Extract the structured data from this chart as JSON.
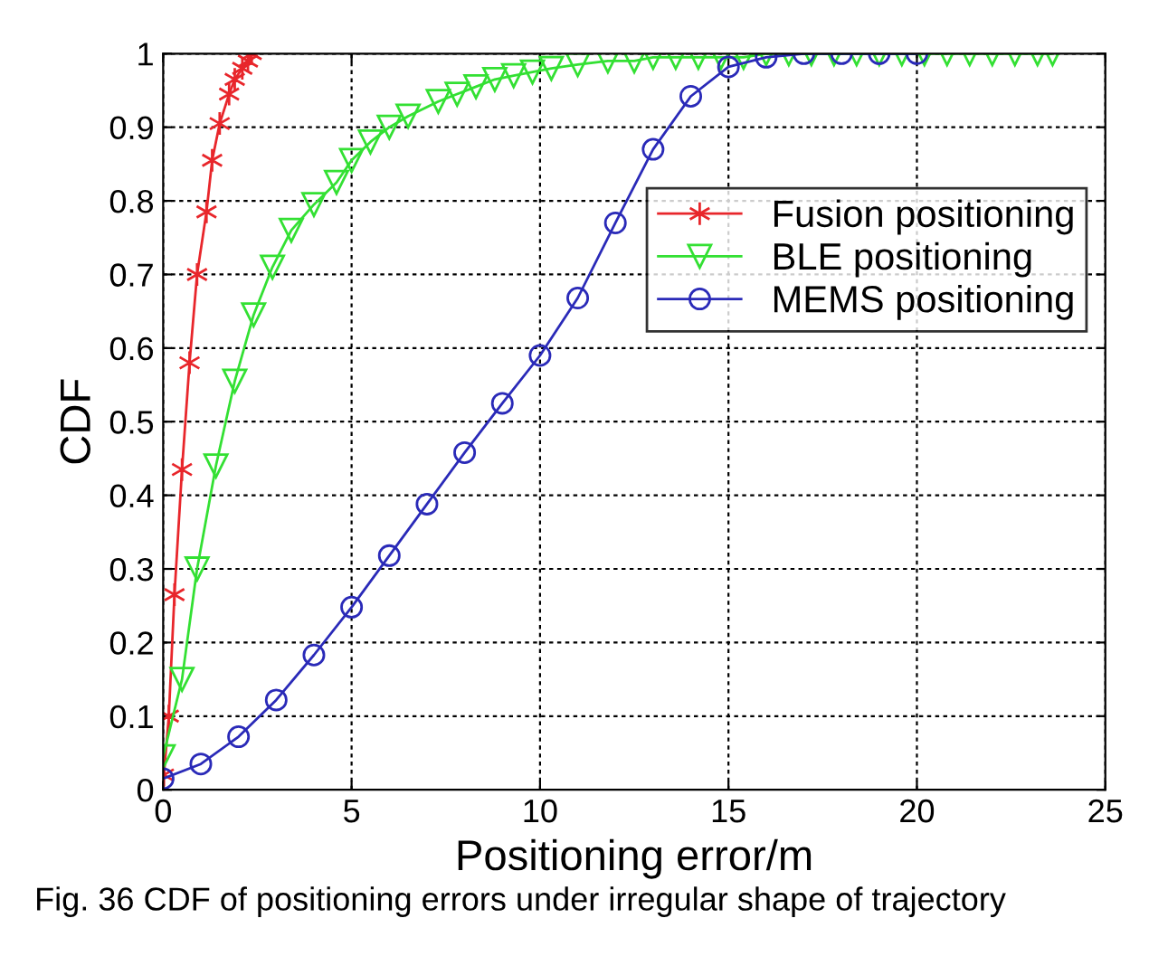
{
  "chart_data": {
    "type": "line",
    "xlabel": "Positioning error/m",
    "ylabel": "CDF",
    "xlim": [
      0,
      25
    ],
    "ylim": [
      0,
      1
    ],
    "xticks": [
      0,
      5,
      10,
      15,
      20,
      25
    ],
    "yticks": [
      0,
      0.1,
      0.2,
      0.3,
      0.4,
      0.5,
      0.6,
      0.7,
      0.8,
      0.9,
      1
    ],
    "grid": true,
    "legend": "right",
    "line_style": "solid",
    "annotations": [
      "Fig. 36 CDF of positioning errors under irregular shape of trajectory"
    ],
    "series": [
      {
        "name": "Fusion positioning",
        "color": "#e8262b",
        "marker": "cross",
        "x": [
          0.02,
          0.15,
          0.3,
          0.5,
          0.7,
          0.9,
          1.15,
          1.3,
          1.5,
          1.75,
          1.9,
          2.1,
          2.25,
          2.35
        ],
        "values": [
          0.02,
          0.1,
          0.265,
          0.435,
          0.58,
          0.7,
          0.785,
          0.855,
          0.905,
          0.945,
          0.965,
          0.98,
          0.99,
          1.0
        ]
      },
      {
        "name": "BLE positioning",
        "color": "#33e033",
        "marker": "triangle",
        "x": [
          0,
          0.5,
          0.9,
          1.4,
          1.9,
          2.4,
          2.9,
          3.4,
          4,
          4.6,
          5,
          5.5,
          6,
          6.5,
          7.3,
          7.8,
          8.3,
          8.8,
          9.3,
          9.8,
          10.3,
          11,
          11.8,
          12.5,
          13,
          13.6,
          14.2,
          14.8,
          15.4,
          16,
          16.6,
          17.2,
          17.8,
          18.4,
          19,
          19.6,
          20.2,
          20.8,
          21.4,
          22,
          22.6,
          23.2,
          23.6
        ],
        "values": [
          0.045,
          0.15,
          0.3,
          0.44,
          0.555,
          0.645,
          0.71,
          0.76,
          0.795,
          0.825,
          0.855,
          0.88,
          0.9,
          0.915,
          0.935,
          0.945,
          0.955,
          0.965,
          0.97,
          0.975,
          0.98,
          0.985,
          0.99,
          0.99,
          0.995,
          0.995,
          0.995,
          0.995,
          0.995,
          1.0,
          1.0,
          1.0,
          1.0,
          1.0,
          1.0,
          1.0,
          1.0,
          1.0,
          1.0,
          1.0,
          1.0,
          1.0,
          1.0
        ]
      },
      {
        "name": "MEMS positioning",
        "color": "#2a2ab8",
        "marker": "circle",
        "x": [
          0,
          1,
          2,
          3,
          4,
          5,
          6,
          7,
          8,
          9,
          10,
          11,
          12,
          13,
          14,
          15,
          16,
          17,
          18,
          19,
          20
        ],
        "values": [
          0.015,
          0.035,
          0.072,
          0.122,
          0.183,
          0.248,
          0.318,
          0.388,
          0.458,
          0.525,
          0.59,
          0.668,
          0.77,
          0.87,
          0.942,
          0.982,
          0.995,
          1.0,
          1.0,
          1.0,
          1.0
        ]
      }
    ]
  }
}
